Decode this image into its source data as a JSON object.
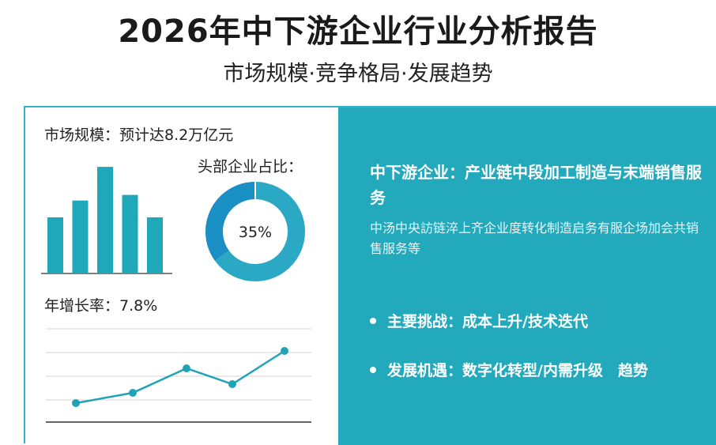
{
  "header": {
    "title": "2026年中下游企业行业分析报告",
    "subtitle": "市场规模·竞争格局·发展趋势"
  },
  "left": {
    "market_label": "市场规模：预计达8.2万亿元",
    "share_label": "头部企业占比：",
    "growth_label": "年增长率：7.8%"
  },
  "right": {
    "title": "中下游企业：产业链中段加工制造与末端销售服务",
    "description": "中汤中央訪链淬上齐企业度转化制造启务有服企场加会共销售服务等",
    "bullets": [
      "主要挑战：成本上升/技术迭代",
      "发展机遇：数字化转型/内需升级　趋势"
    ]
  },
  "colors": {
    "accent": "#22a9bc",
    "bar": "#1fa8ba",
    "donut_main": "#2aa8c4",
    "donut_share": "#1a8fc4",
    "line": "#1fa3b5"
  },
  "chart_data": [
    {
      "type": "bar",
      "values": [
        5,
        6.5,
        9.5,
        7,
        5
      ]
    },
    {
      "type": "pie",
      "values": [
        35,
        65
      ],
      "data_labels": [
        "35%"
      ]
    },
    {
      "type": "line",
      "x": [
        1,
        2,
        3,
        4,
        5
      ],
      "series": [
        {
          "values": [
            1,
            2.3,
            5.4,
            3.4,
            7.6
          ]
        }
      ],
      "grid": true
    }
  ]
}
